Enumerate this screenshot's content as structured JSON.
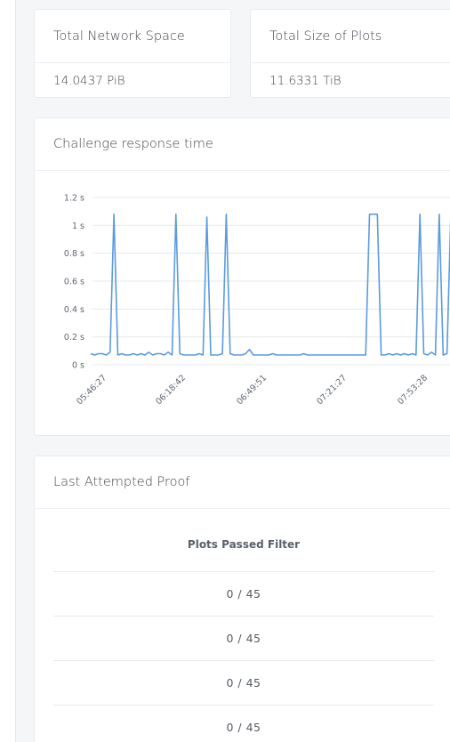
{
  "cards": {
    "network_space": {
      "label": "Total Network Space",
      "value": "14.0437 PiB"
    },
    "plot_size": {
      "label": "Total Size of Plots",
      "value": "11.6331 TiB"
    }
  },
  "chart": {
    "title": "Challenge response time"
  },
  "chart_data": {
    "type": "line",
    "title": "Challenge response time",
    "xlabel": "",
    "ylabel": "",
    "ylim": [
      0,
      1.2
    ],
    "grid": true,
    "y_ticks": [
      "0 s",
      "0.2 s",
      "0.4 s",
      "0.6 s",
      "0.8 s",
      "1 s",
      "1.2 s"
    ],
    "x_ticks": [
      "05:46:27",
      "06:18:42",
      "06:49:51",
      "07:21:27",
      "07:53:28"
    ],
    "color": "#5b9bdf",
    "series": [
      {
        "values": [
          0.08,
          0.07,
          0.08,
          0.08,
          0.07,
          0.09,
          1.08,
          0.07,
          0.08,
          0.07,
          0.07,
          0.08,
          0.07,
          0.08,
          0.07,
          0.09,
          0.07,
          0.08,
          0.08,
          0.07,
          0.09,
          0.07,
          1.08,
          0.08,
          0.07,
          0.07,
          0.07,
          0.07,
          0.08,
          0.07,
          1.06,
          0.07,
          0.07,
          0.07,
          0.08,
          1.08,
          0.08,
          0.07,
          0.07,
          0.07,
          0.08,
          0.11,
          0.07,
          0.07,
          0.07,
          0.07,
          0.07,
          0.08,
          0.07,
          0.07,
          0.07,
          0.07,
          0.07,
          0.07,
          0.07,
          0.08,
          0.07,
          0.07,
          0.07,
          0.07,
          0.07,
          0.07,
          0.07,
          0.07,
          0.07,
          0.07,
          0.07,
          0.07,
          0.07,
          0.07,
          0.07,
          0.07,
          1.08,
          1.08,
          1.08,
          0.07,
          0.07,
          0.08,
          0.07,
          0.08,
          0.07,
          0.08,
          0.07,
          0.08,
          0.07,
          1.08,
          0.08,
          0.07,
          0.09,
          0.07,
          1.08,
          0.07,
          0.08,
          1.1
        ]
      }
    ]
  },
  "proof": {
    "title": "Last Attempted Proof",
    "column_header": "Plots Passed Filter",
    "rows": [
      "0 / 45",
      "0 / 45",
      "0 / 45",
      "0 / 45"
    ]
  }
}
